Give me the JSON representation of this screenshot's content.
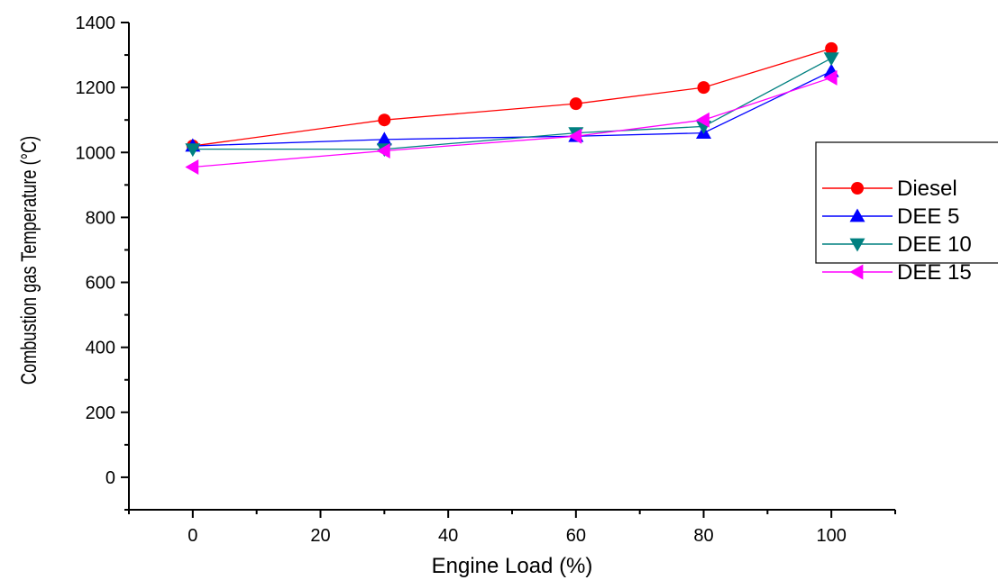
{
  "chart_data": {
    "type": "line",
    "xlabel": "Engine Load (%)",
    "ylabel": "Combustion gas Temperature (°C)",
    "x": [
      0,
      30,
      60,
      80,
      100
    ],
    "xlim": [
      -10,
      110
    ],
    "ylim": [
      -100,
      1400
    ],
    "xticks": [
      "0",
      "20",
      "40",
      "60",
      "80",
      "100"
    ],
    "yticks": [
      "0",
      "200",
      "400",
      "600",
      "800",
      "1000",
      "1200",
      "1400"
    ],
    "legend_position": "right",
    "series": [
      {
        "name": "Diesel",
        "values": [
          1020,
          1100,
          1150,
          1200,
          1320
        ],
        "color": "#ff0000",
        "marker": "circle"
      },
      {
        "name": "DEE 5",
        "values": [
          1020,
          1040,
          1050,
          1060,
          1250
        ],
        "color": "#0000ff",
        "marker": "triangle-up"
      },
      {
        "name": "DEE 10",
        "values": [
          1010,
          1010,
          1060,
          1080,
          1290
        ],
        "color": "#008080",
        "marker": "triangle-down"
      },
      {
        "name": "DEE 15",
        "values": [
          955,
          1005,
          1050,
          1100,
          1230
        ],
        "color": "#ff00ff",
        "marker": "triangle-left"
      }
    ]
  }
}
